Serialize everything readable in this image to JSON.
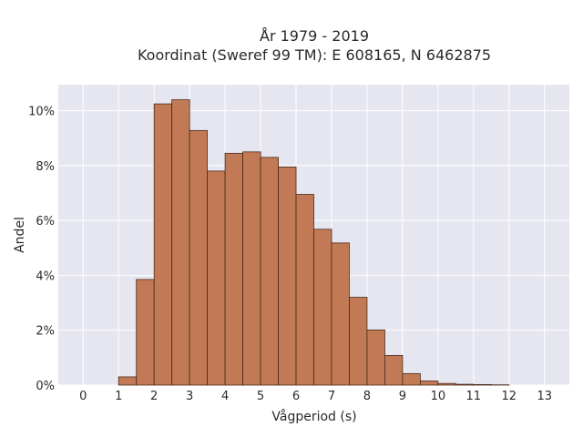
{
  "chart_data": {
    "type": "bar",
    "title": "År 1979 - 2019",
    "subtitle": "Koordinat (Sweref 99 TM): E 608165, N 6462875",
    "xlabel": "Vågperiod (s)",
    "ylabel": "Andel",
    "xlim": [
      -0.7,
      13.7
    ],
    "ylim": [
      0,
      0.1095
    ],
    "x_ticks": [
      0,
      1,
      2,
      3,
      4,
      5,
      6,
      7,
      8,
      9,
      10,
      11,
      12,
      13
    ],
    "y_ticks": [
      0,
      0.02,
      0.04,
      0.06,
      0.08,
      0.1
    ],
    "y_tick_labels": [
      "0%",
      "2%",
      "4%",
      "6%",
      "8%",
      "10%"
    ],
    "bin_width": 0.5,
    "bin_starts": [
      1.0,
      1.5,
      2.0,
      2.5,
      3.0,
      3.5,
      4.0,
      4.5,
      5.0,
      5.5,
      6.0,
      6.5,
      7.0,
      7.5,
      8.0,
      8.5,
      9.0,
      9.5,
      10.0,
      10.5,
      11.0,
      11.5
    ],
    "values": [
      0.003,
      0.0385,
      0.1025,
      0.104,
      0.0928,
      0.078,
      0.0845,
      0.085,
      0.083,
      0.0795,
      0.0695,
      0.0568,
      0.0518,
      0.032,
      0.0201,
      0.0108,
      0.0042,
      0.0015,
      0.0006,
      0.0003,
      0.0002,
      0.0001
    ],
    "grid": true,
    "bar_color": "#c17a55",
    "bar_edge_color": "#4a2a1a",
    "background_color": "#e5e6f0"
  }
}
